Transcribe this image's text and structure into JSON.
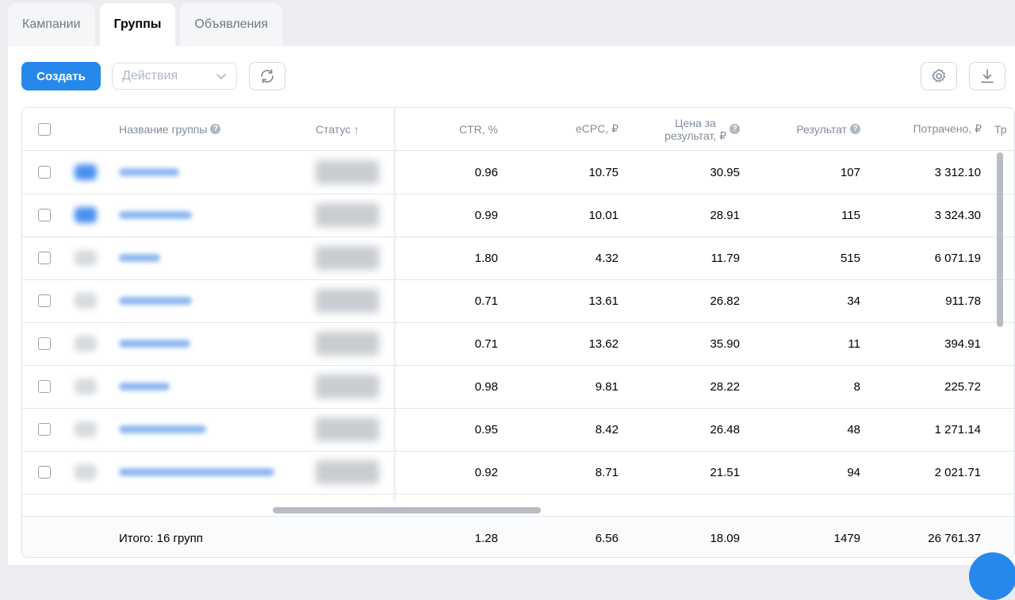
{
  "tabs": [
    {
      "label": "Кампании",
      "active": false
    },
    {
      "label": "Группы",
      "active": true
    },
    {
      "label": "Объявления",
      "active": false
    }
  ],
  "toolbar": {
    "create_label": "Создать",
    "actions_placeholder": "Действия",
    "icons": [
      "refresh-icon",
      "gear-icon",
      "download-icon"
    ]
  },
  "table": {
    "columns": {
      "name": "Название группы",
      "status": "Статус ↑",
      "ctr": "CTR, %",
      "ecpc": "eCPC, ₽",
      "price_line1": "Цена за",
      "price_line2": "результат, ₽",
      "result": "Результат",
      "spent": "Потрачено, ₽",
      "next": "Тр"
    },
    "rows": [
      {
        "ctr": "0.96",
        "ecpc": "10.75",
        "price": "30.95",
        "result": "107",
        "spent": "3 312.10"
      },
      {
        "ctr": "0.99",
        "ecpc": "10.01",
        "price": "28.91",
        "result": "115",
        "spent": "3 324.30"
      },
      {
        "ctr": "1.80",
        "ecpc": "4.32",
        "price": "11.79",
        "result": "515",
        "spent": "6 071.19"
      },
      {
        "ctr": "0.71",
        "ecpc": "13.61",
        "price": "26.82",
        "result": "34",
        "spent": "911.78"
      },
      {
        "ctr": "0.71",
        "ecpc": "13.62",
        "price": "35.90",
        "result": "11",
        "spent": "394.91"
      },
      {
        "ctr": "0.98",
        "ecpc": "9.81",
        "price": "28.22",
        "result": "8",
        "spent": "225.72"
      },
      {
        "ctr": "0.95",
        "ecpc": "8.42",
        "price": "26.48",
        "result": "48",
        "spent": "1 271.14"
      },
      {
        "ctr": "0.92",
        "ecpc": "8.71",
        "price": "21.51",
        "result": "94",
        "spent": "2 021.71"
      }
    ],
    "footer": {
      "label": "Итого: 16 групп",
      "ctr": "1.28",
      "ecpc": "6.56",
      "price": "18.09",
      "result": "1479",
      "spent": "26 761.37"
    }
  },
  "colors": {
    "accent": "#2688eb",
    "border": "#dce1e6",
    "muted": "#818c99",
    "background": "#ebedf0"
  }
}
